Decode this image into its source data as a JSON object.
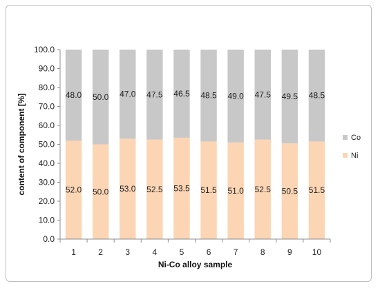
{
  "chart_data": {
    "type": "bar",
    "stacked": true,
    "categories": [
      "1",
      "2",
      "3",
      "4",
      "5",
      "6",
      "7",
      "8",
      "9",
      "10"
    ],
    "series": [
      {
        "name": "Ni",
        "color": "#fcd5b4",
        "values": [
          52.0,
          50.0,
          53.0,
          52.5,
          53.5,
          51.5,
          51.0,
          52.5,
          50.5,
          51.5
        ],
        "labels": [
          "52.0",
          "50.0",
          "53.0",
          "52.5",
          "53.5",
          "51.5",
          "51.0",
          "52.5",
          "50.5",
          "51.5"
        ]
      },
      {
        "name": "Co",
        "color": "#c8c8c8",
        "values": [
          48.0,
          50.0,
          47.0,
          47.5,
          46.5,
          48.5,
          49.0,
          47.5,
          49.5,
          48.5
        ],
        "labels": [
          "48.0",
          "50.0",
          "47.0",
          "47.5",
          "46.5",
          "48.5",
          "49.0",
          "47.5",
          "49.5",
          "48.5"
        ]
      }
    ],
    "xlabel": "Ni-Co alloy sample",
    "ylabel": "content of component [%]",
    "ylim": [
      0,
      100
    ],
    "yticks": [
      "0.0",
      "10.0",
      "20.0",
      "30.0",
      "40.0",
      "50.0",
      "60.0",
      "70.0",
      "80.0",
      "90.0",
      "100.0"
    ],
    "grid": false,
    "legend_position": "right",
    "legend_order": [
      "Co",
      "Ni"
    ]
  }
}
